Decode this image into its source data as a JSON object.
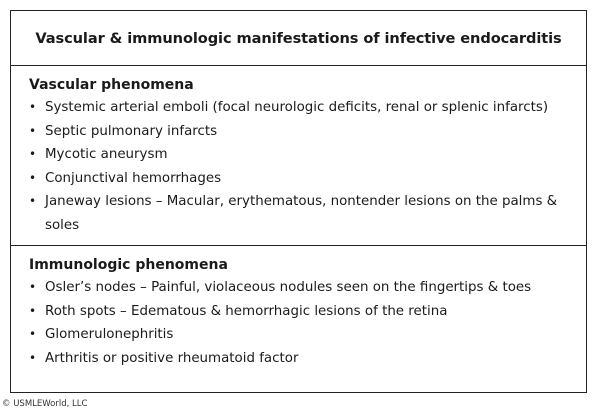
{
  "title": "Vascular & immunologic manifestations of infective endocarditis",
  "sections": [
    {
      "heading": "Vascular phenomena",
      "items": [
        "Systemic arterial emboli (focal neurologic deficits, renal or splenic infarcts)",
        "Septic pulmonary infarcts",
        "Mycotic aneurysm",
        "Conjunctival hemorrhages",
        "Janeway lesions – Macular, erythematous, nontender lesions on the palms & soles"
      ]
    },
    {
      "heading": "Immunologic phenomena",
      "items": [
        "Osler’s nodes – Painful, violaceous nodules seen on the fingertips & toes",
        "Roth spots – Edematous & hemorrhagic lesions of the retina",
        "Glomerulonephritis",
        "Arthritis or positive rheumatoid factor"
      ]
    }
  ],
  "bullet_char": "•",
  "copyright": "© USMLEWorld, LLC"
}
